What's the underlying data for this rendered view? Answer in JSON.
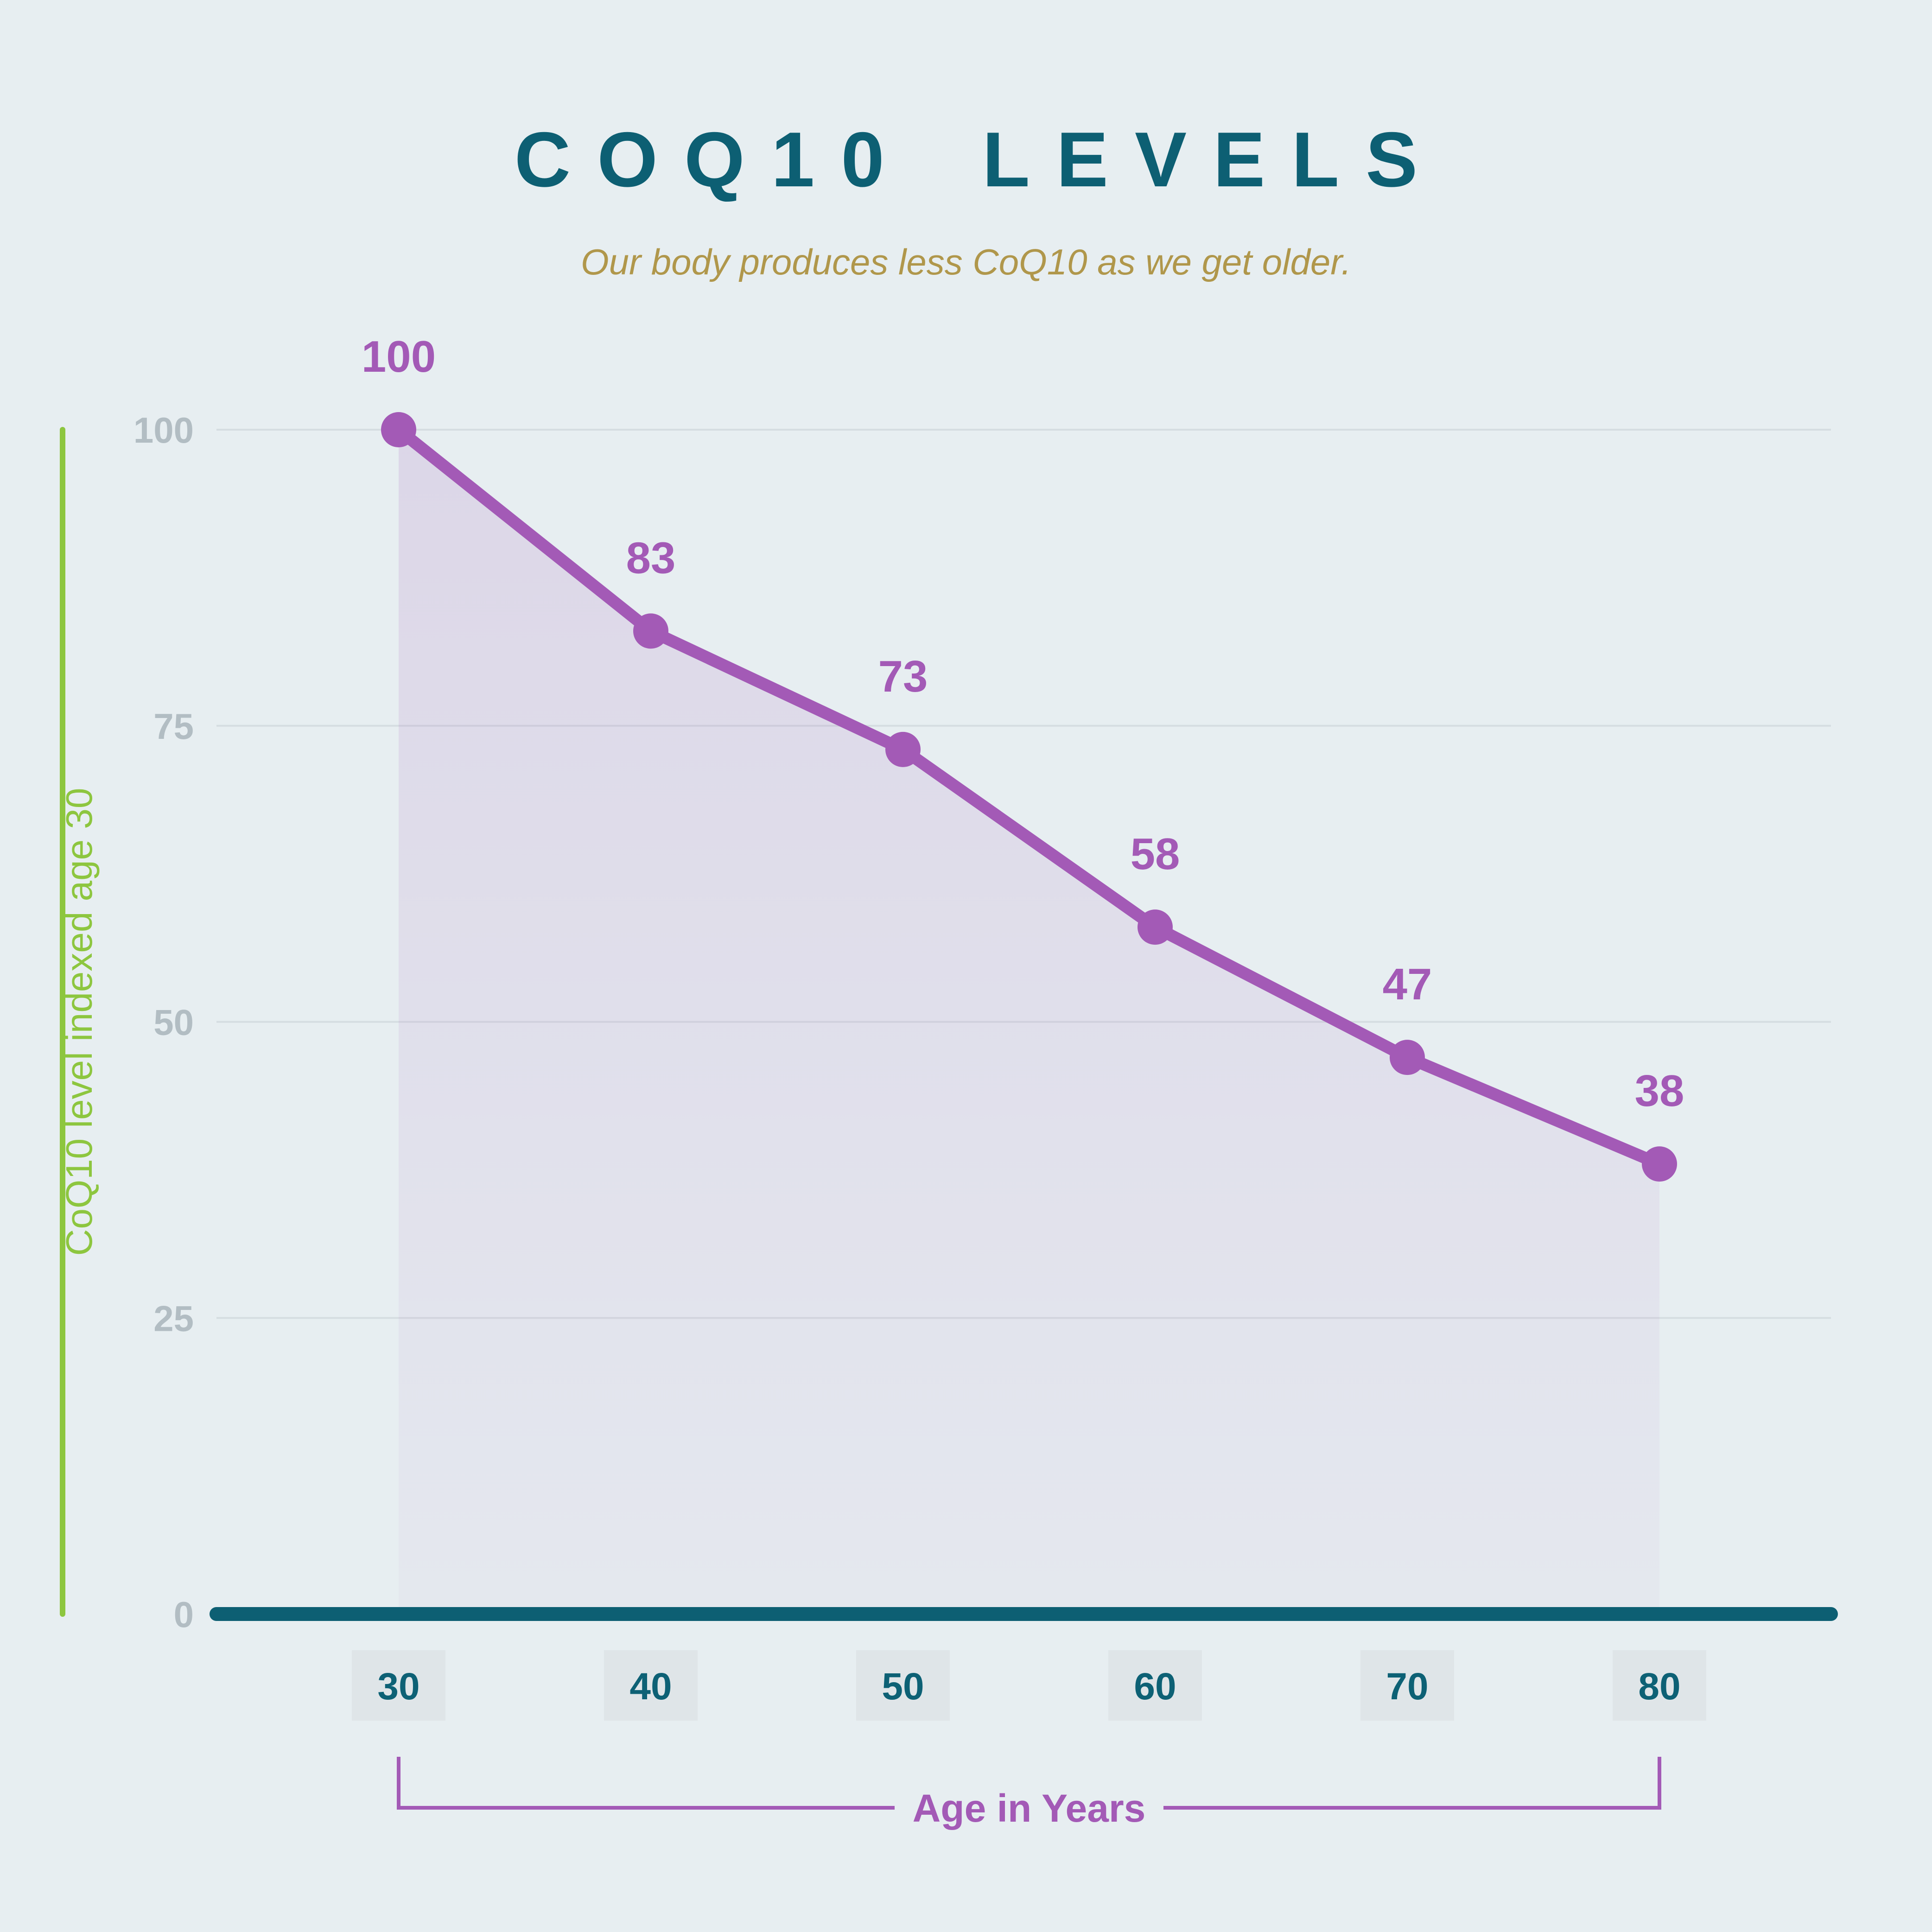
{
  "header": {
    "title": "COQ10 LEVELS",
    "subtitle": "Our body produces less CoQ10 as we get older."
  },
  "chart_data": {
    "type": "line",
    "title": "COQ10 LEVELS",
    "subtitle": "Our body produces less CoQ10 as we get older.",
    "x": [
      30,
      40,
      50,
      60,
      70,
      80
    ],
    "values": [
      100,
      83,
      73,
      58,
      47,
      38
    ],
    "point_labels": [
      "100",
      "83",
      "73",
      "58",
      "47",
      "38"
    ],
    "xlabel": "Age in Years",
    "ylabel": "CoQ10 level indexed age 30",
    "yticks": [
      0,
      25,
      50,
      75,
      100
    ],
    "ylim": [
      0,
      100
    ],
    "xlim": [
      30,
      80
    ],
    "grid": true,
    "legend": "none",
    "area_fill": true,
    "colors": {
      "line": "#a35ab6",
      "area": "#a35ab6",
      "axis": "#0d5f73",
      "ylabel": "#8dc63f",
      "ytick_text": "#b2bdc3",
      "xtick_text": "#0d6175",
      "xtick_box": "#dfe5e8",
      "gridline": "#d5dde1",
      "background": "#e7eef1",
      "title": "#0d5f73",
      "subtitle": "#b0974b"
    }
  }
}
